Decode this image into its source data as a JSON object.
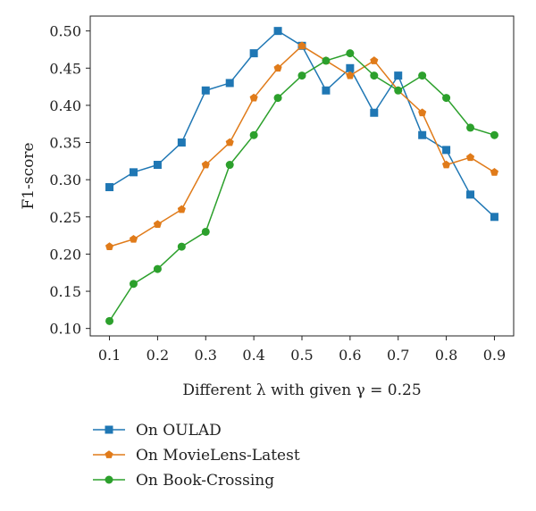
{
  "chart_data": {
    "type": "line",
    "title": "",
    "xlabel": "Different λ with given γ = 0.25",
    "ylabel": "F1-score",
    "x": [
      0.1,
      0.15,
      0.2,
      0.25,
      0.3,
      0.35,
      0.4,
      0.45,
      0.5,
      0.55,
      0.6,
      0.65,
      0.7,
      0.75,
      0.8,
      0.85,
      0.9
    ],
    "xticks": [
      "0.1",
      "0.2",
      "0.3",
      "0.4",
      "0.5",
      "0.6",
      "0.7",
      "0.8",
      "0.9"
    ],
    "yticks": [
      "0.10",
      "0.15",
      "0.20",
      "0.25",
      "0.30",
      "0.35",
      "0.40",
      "0.45",
      "0.50"
    ],
    "xlim": [
      0.06,
      0.94
    ],
    "ylim": [
      0.09,
      0.52
    ],
    "grid": false,
    "legend_position": "bottom",
    "series": [
      {
        "name": "On OULAD",
        "color": "#1f77b4",
        "marker": "square",
        "values": [
          0.29,
          0.31,
          0.32,
          0.35,
          0.42,
          0.43,
          0.47,
          0.5,
          0.48,
          0.42,
          0.45,
          0.39,
          0.44,
          0.36,
          0.34,
          0.28,
          0.25
        ]
      },
      {
        "name": "On MovieLens-Latest",
        "color": "#e07b1a",
        "marker": "pentagon",
        "values": [
          0.21,
          0.22,
          0.24,
          0.26,
          0.32,
          0.35,
          0.41,
          0.45,
          0.48,
          0.46,
          0.44,
          0.46,
          0.42,
          0.39,
          0.32,
          0.33,
          0.31
        ]
      },
      {
        "name": "On Book-Crossing",
        "color": "#2ca02c",
        "marker": "circle",
        "values": [
          0.11,
          0.16,
          0.18,
          0.21,
          0.23,
          0.32,
          0.36,
          0.41,
          0.44,
          0.46,
          0.47,
          0.44,
          0.42,
          0.44,
          0.41,
          0.37,
          0.36
        ]
      }
    ]
  }
}
